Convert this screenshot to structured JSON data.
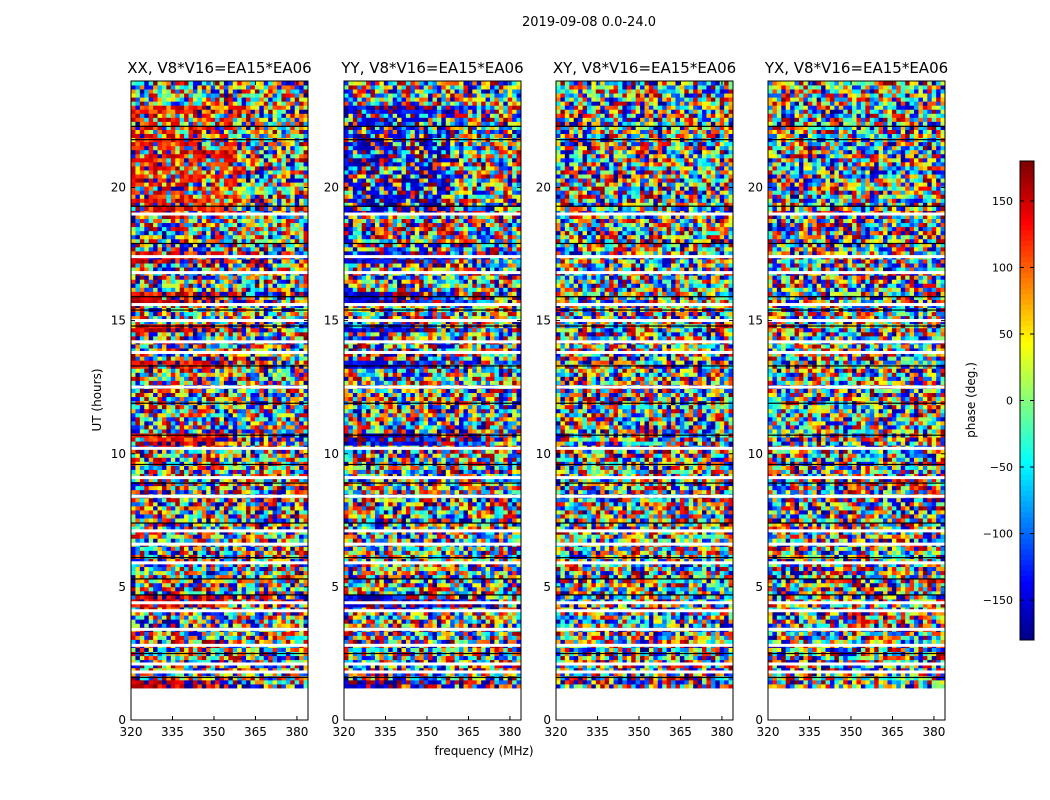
{
  "figure_title": "2019-09-08 0.0-24.0",
  "chart_data": {
    "type": "heatmap",
    "title": "2019-09-08 0.0-24.0",
    "xlabel": "frequency (MHz)",
    "ylabel": "UT (hours)",
    "xlim": [
      320,
      384
    ],
    "ylim": [
      0,
      24
    ],
    "x_ticks": [
      320,
      335,
      350,
      365,
      380
    ],
    "y_ticks": [
      0,
      5,
      10,
      15,
      20
    ],
    "data_time_range": [
      1.2,
      24.0
    ],
    "panels": [
      {
        "title": "XX, V8*V16=EA15*EA06",
        "polarization": "XX"
      },
      {
        "title": "YY, V8*V16=EA15*EA06",
        "polarization": "YY"
      },
      {
        "title": "XY, V8*V16=EA15*EA06",
        "polarization": "XY"
      },
      {
        "title": "YX, V8*V16=EA15*EA06",
        "polarization": "YX"
      }
    ],
    "colorbar": {
      "label": "phase (deg.)",
      "range": [
        -180,
        180
      ],
      "ticks": [
        150,
        100,
        50,
        0,
        -50,
        -100,
        -150
      ],
      "tick_labels": [
        "150",
        "100",
        "50",
        "0",
        "−50",
        "−100",
        "−150"
      ],
      "colormap": "jet"
    },
    "gap_rows_hours": [
      19.0,
      17.4,
      16.8,
      15.6,
      15.0,
      14.2,
      13.8,
      12.5,
      10.2,
      9.1,
      8.4,
      7.1,
      6.6,
      5.9,
      4.4,
      4.1,
      3.4,
      2.8,
      2.1,
      1.8
    ],
    "dark_rows_hours": [
      22.3,
      21.8,
      19.3,
      17.9,
      15.9,
      15.4,
      14.8,
      13.3,
      11.9,
      10.7,
      9.6,
      8.9,
      7.4,
      6.1,
      5.3,
      4.7,
      2.5,
      1.6
    ],
    "coherent_bands": {
      "XX": [
        {
          "t": 22.95,
          "dt": 0.25,
          "phase": 120
        },
        {
          "t": 17.35,
          "dt": 0.25,
          "phase": 150
        },
        {
          "t": 15.85,
          "dt": 0.3,
          "phase": 140
        },
        {
          "t": 14.7,
          "dt": 0.2,
          "phase": 145
        },
        {
          "t": 13.35,
          "dt": 0.15,
          "phase": 150
        },
        {
          "t": 10.6,
          "dt": 0.35,
          "phase": 140
        },
        {
          "t": 4.5,
          "dt": 0.3,
          "phase": 150
        },
        {
          "t": 1.35,
          "dt": 0.25,
          "phase": 155
        }
      ],
      "YY": [
        {
          "t": 22.95,
          "dt": 0.25,
          "phase": -150
        },
        {
          "t": 17.35,
          "dt": 0.25,
          "phase": -150
        },
        {
          "t": 15.85,
          "dt": 0.3,
          "phase": -150
        },
        {
          "t": 14.7,
          "dt": 0.2,
          "phase": -145
        },
        {
          "t": 13.35,
          "dt": 0.15,
          "phase": -150
        },
        {
          "t": 10.6,
          "dt": 0.35,
          "phase": -155
        },
        {
          "t": 4.5,
          "dt": 0.3,
          "phase": -150
        },
        {
          "t": 1.35,
          "dt": 0.25,
          "phase": -165
        }
      ]
    },
    "warm_region": {
      "XX": {
        "t0": 19.0,
        "t1": 22.6,
        "bias": 130
      },
      "YY": {
        "t0": 19.0,
        "t1": 22.6,
        "bias": -155
      }
    }
  }
}
